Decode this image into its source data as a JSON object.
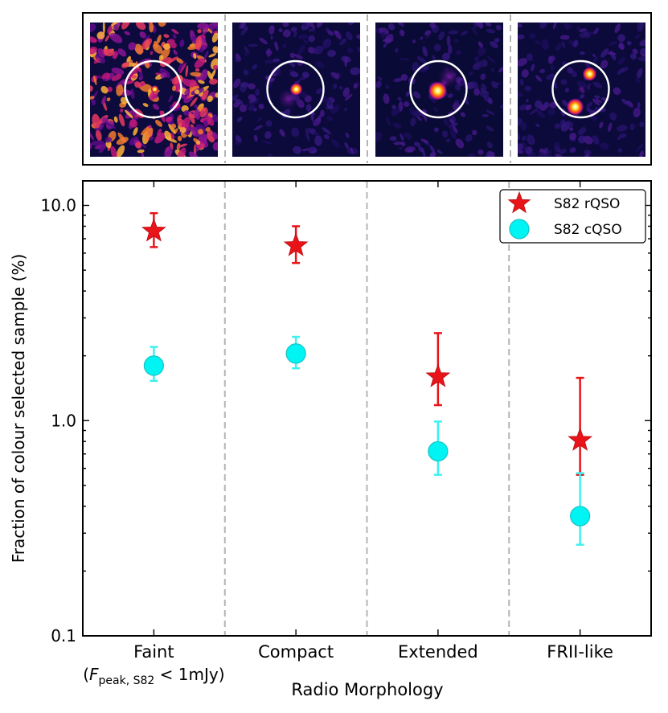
{
  "chart_data": {
    "type": "scatter",
    "title": "",
    "xlabel": "Radio Morphology",
    "ylabel": "Fraction of colour selected sample (%)",
    "yscale": "log",
    "ylim": [
      0.1,
      13
    ],
    "y_ticks": [
      "0.1",
      "1.0",
      "10.0"
    ],
    "categories": [
      "Faint",
      "Compact",
      "Extended",
      "FRII-like"
    ],
    "category_sublabel": {
      "index": 0,
      "prefix": "(",
      "F": "F",
      "sub": "peak, S82",
      "suffix": " < 1mJy)"
    },
    "legend": {
      "placement": "top-right"
    },
    "grid": false,
    "category_dividers": true,
    "series": [
      {
        "name": "S82 rQSO",
        "marker": "star",
        "color": "#e8141a",
        "values": [
          7.6,
          6.5,
          1.6,
          0.81
        ],
        "err_low": [
          6.4,
          5.4,
          1.18,
          0.56
        ],
        "err_high": [
          9.2,
          8.0,
          2.55,
          1.58
        ]
      },
      {
        "name": "S82 cQSO",
        "marker": "circle",
        "color": "#00f4f4",
        "edge": "#17c3c3",
        "values": [
          1.8,
          2.05,
          0.72,
          0.36
        ],
        "err_low": [
          1.53,
          1.75,
          0.56,
          0.265
        ],
        "err_high": [
          2.2,
          2.45,
          0.99,
          0.57
        ]
      }
    ]
  },
  "thumbnails": [
    {
      "name": "faint",
      "background": "#0d0a3e",
      "noise": "high"
    },
    {
      "name": "compact",
      "background": "#0b0a3a",
      "noise": "low"
    },
    {
      "name": "extended",
      "background": "#0a0a36",
      "noise": "low"
    },
    {
      "name": "frii-like",
      "background": "#0b0a3a",
      "noise": "low"
    }
  ]
}
